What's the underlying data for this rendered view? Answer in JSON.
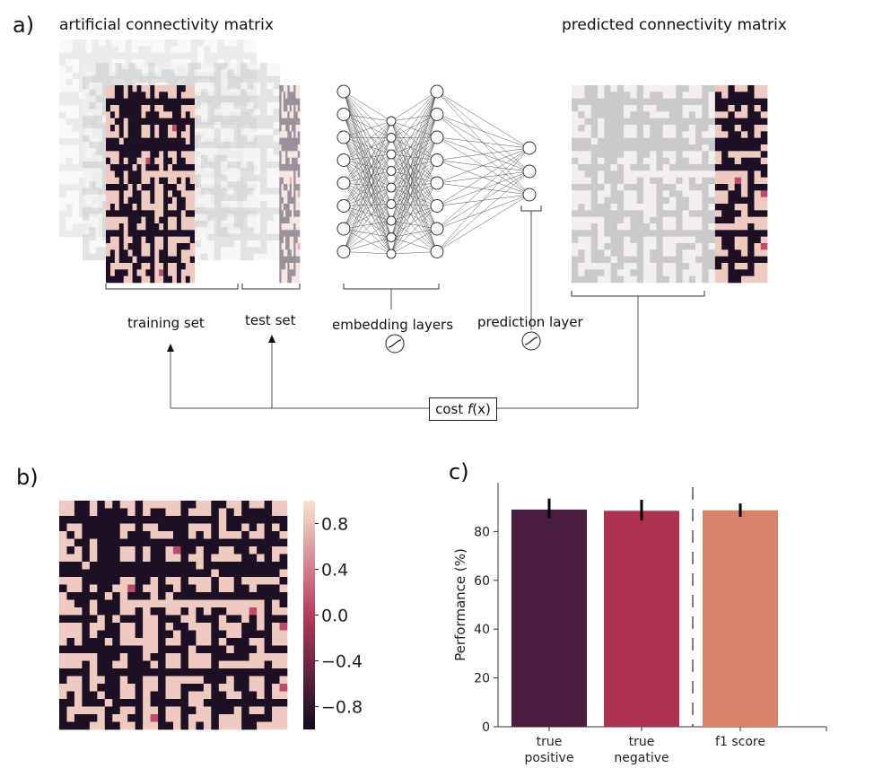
{
  "panel_a": {
    "letter": "a)",
    "left_title": "artificial connectivity matrix",
    "right_title": "predicted connectivity matrix",
    "training_label": "training set",
    "test_label": "test set",
    "embedding_label": "embedding layers",
    "prediction_label": "prediction layer",
    "cost_label_prefix": "cost ",
    "cost_label_fn": "f",
    "cost_label_suffix": "(x)"
  },
  "panel_b": {
    "letter": "b)",
    "colorbar_ticks": [
      "0.8",
      "0.4",
      "0.0",
      "−0.4",
      "−0.8"
    ],
    "colorbar_tick_values": [
      0.8,
      0.4,
      0.0,
      -0.4,
      -0.8
    ],
    "colorbar_range": [
      -1.0,
      1.0
    ],
    "colors": {
      "low": "#0d0b1e",
      "mid": "#b63a5e",
      "high": "#f8e3d1"
    }
  },
  "panel_c": {
    "letter": "c)"
  },
  "chart_data": {
    "type": "bar",
    "categories": [
      "true\npositive",
      "true\nnegative",
      "f1 score"
    ],
    "values": [
      89,
      88.5,
      88.7
    ],
    "errors": [
      [
        85.5,
        93.5
      ],
      [
        84.5,
        93
      ],
      [
        86,
        91.5
      ]
    ],
    "colors": [
      "#4a1e41",
      "#ad3350",
      "#d9846a"
    ],
    "ylabel": "Performance (%)",
    "ylim": [
      0,
      100
    ],
    "yticks": [
      0,
      20,
      40,
      60,
      80
    ],
    "divider_after_category": 1
  }
}
